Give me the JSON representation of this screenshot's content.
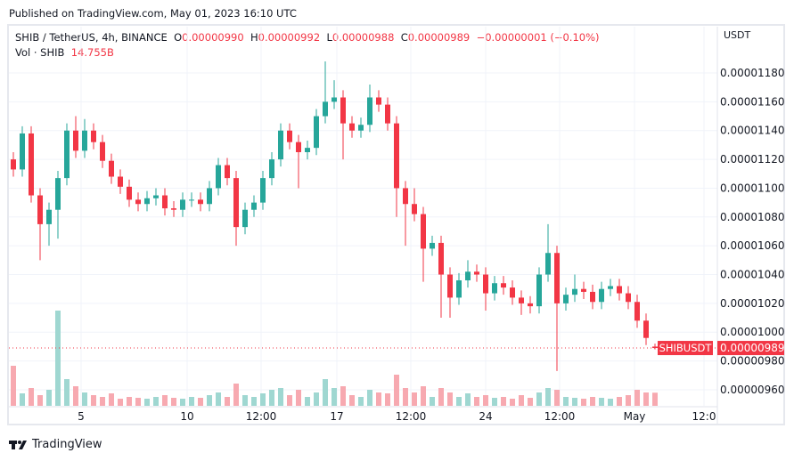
{
  "published": "Published on TradingView.com, May 01, 2023 16:10 UTC",
  "legend": {
    "symbol": "SHIB / TetherUS, 4h, BINANCE",
    "o_label": "O",
    "o": "0.00000990",
    "h_label": "H",
    "h": "0.00000992",
    "l_label": "L",
    "l": "0.00000988",
    "c_label": "C",
    "c": "0.00000989",
    "change": "−0.00000001 (−0.10%)",
    "vol_label": "Vol · SHIB",
    "vol": "14.755B"
  },
  "currency": "USDT",
  "footer": {
    "brand": "TradingView"
  },
  "colors": {
    "up": "#26a69a",
    "down": "#f23645",
    "up_vol": "#9fd7d1",
    "down_vol": "#f7a9b0",
    "grid": "#f0f3fa"
  },
  "chart_data": {
    "type": "candlestick",
    "interval": "4h",
    "ylim": [
      9.5e-06,
      1.185e-05
    ],
    "y_ticks": [
      "0.00001180",
      "0.00001160",
      "0.00001140",
      "0.00001120",
      "0.00001100",
      "0.00001080",
      "0.00001060",
      "0.00001040",
      "0.00001020",
      "0.00001000",
      "0.00000980",
      "0.00000960"
    ],
    "x_ticks": [
      "5",
      "10",
      "12:00",
      "17",
      "12:00",
      "24",
      "12:00",
      "May",
      "12:0"
    ],
    "last_price": {
      "symbol": "SHIBUSDT",
      "value": "0.00000989"
    },
    "ohlc": [
      [
        1.12e-05,
        1.125e-05,
        1.108e-05,
        1.113e-05
      ],
      [
        1.113e-05,
        1.143e-05,
        1.108e-05,
        1.138e-05
      ],
      [
        1.138e-05,
        1.143e-05,
        1.09e-05,
        1.095e-05
      ],
      [
        1.095e-05,
        1.1e-05,
        1.05e-05,
        1.075e-05
      ],
      [
        1.075e-05,
        1.09e-05,
        1.06e-05,
        1.085e-05
      ],
      [
        1.085e-05,
        1.112e-05,
        1.065e-05,
        1.107e-05
      ],
      [
        1.107e-05,
        1.145e-05,
        1.102e-05,
        1.14e-05
      ],
      [
        1.14e-05,
        1.15e-05,
        1.121e-05,
        1.126e-05
      ],
      [
        1.126e-05,
        1.148e-05,
        1.121e-05,
        1.14e-05
      ],
      [
        1.14e-05,
        1.145e-05,
        1.127e-05,
        1.132e-05
      ],
      [
        1.132e-05,
        1.137e-05,
        1.114e-05,
        1.119e-05
      ],
      [
        1.119e-05,
        1.124e-05,
        1.103e-05,
        1.108e-05
      ],
      [
        1.108e-05,
        1.113e-05,
        1.096e-05,
        1.101e-05
      ],
      [
        1.101e-05,
        1.106e-05,
        1.087e-05,
        1.092e-05
      ],
      [
        1.092e-05,
        1.097e-05,
        1.084e-05,
        1.089e-05
      ],
      [
        1.089e-05,
        1.098e-05,
        1.084e-05,
        1.093e-05
      ],
      [
        1.093e-05,
        1.1e-05,
        1.088e-05,
        1.095e-05
      ],
      [
        1.095e-05,
        1.1e-05,
        1.081e-05,
        1.086e-05
      ],
      [
        1.086e-05,
        1.091e-05,
        1.08e-05,
        1.085e-05
      ],
      [
        1.085e-05,
        1.097e-05,
        1.08e-05,
        1.092e-05
      ],
      [
        1.092e-05,
        1.097e-05,
        1.087e-05,
        1.092e-05
      ],
      [
        1.092e-05,
        1.097e-05,
        1.084e-05,
        1.089e-05
      ],
      [
        1.089e-05,
        1.105e-05,
        1.084e-05,
        1.1e-05
      ],
      [
        1.1e-05,
        1.121e-05,
        1.095e-05,
        1.116e-05
      ],
      [
        1.116e-05,
        1.121e-05,
        1.102e-05,
        1.107e-05
      ],
      [
        1.107e-05,
        1.112e-05,
        1.06e-05,
        1.073e-05
      ],
      [
        1.073e-05,
        1.09e-05,
        1.068e-05,
        1.085e-05
      ],
      [
        1.085e-05,
        1.095e-05,
        1.08e-05,
        1.09e-05
      ],
      [
        1.09e-05,
        1.112e-05,
        1.085e-05,
        1.107e-05
      ],
      [
        1.107e-05,
        1.125e-05,
        1.102e-05,
        1.12e-05
      ],
      [
        1.12e-05,
        1.145e-05,
        1.115e-05,
        1.14e-05
      ],
      [
        1.14e-05,
        1.145e-05,
        1.127e-05,
        1.132e-05
      ],
      [
        1.132e-05,
        1.137e-05,
        1.1e-05,
        1.125e-05
      ],
      [
        1.125e-05,
        1.133e-05,
        1.12e-05,
        1.128e-05
      ],
      [
        1.128e-05,
        1.155e-05,
        1.123e-05,
        1.15e-05
      ],
      [
        1.15e-05,
        1.188e-05,
        1.145e-05,
        1.16e-05
      ],
      [
        1.16e-05,
        1.175e-05,
        1.155e-05,
        1.163e-05
      ],
      [
        1.163e-05,
        1.168e-05,
        1.12e-05,
        1.145e-05
      ],
      [
        1.145e-05,
        1.15e-05,
        1.135e-05,
        1.14e-05
      ],
      [
        1.14e-05,
        1.149e-05,
        1.135e-05,
        1.144e-05
      ],
      [
        1.144e-05,
        1.172e-05,
        1.139e-05,
        1.163e-05
      ],
      [
        1.163e-05,
        1.168e-05,
        1.153e-05,
        1.158e-05
      ],
      [
        1.158e-05,
        1.163e-05,
        1.14e-05,
        1.145e-05
      ],
      [
        1.145e-05,
        1.15e-05,
        1.08e-05,
        1.1e-05
      ],
      [
        1.1e-05,
        1.105e-05,
        1.06e-05,
        1.089e-05
      ],
      [
        1.089e-05,
        1.1e-05,
        1.077e-05,
        1.082e-05
      ],
      [
        1.082e-05,
        1.087e-05,
        1.035e-05,
        1.058e-05
      ],
      [
        1.058e-05,
        1.067e-05,
        1.053e-05,
        1.062e-05
      ],
      [
        1.062e-05,
        1.067e-05,
        1.01e-05,
        1.04e-05
      ],
      [
        1.04e-05,
        1.045e-05,
        1.01e-05,
        1.024e-05
      ],
      [
        1.024e-05,
        1.041e-05,
        1.019e-05,
        1.036e-05
      ],
      [
        1.036e-05,
        1.05e-05,
        1.031e-05,
        1.042e-05
      ],
      [
        1.042e-05,
        1.047e-05,
        1.035e-05,
        1.04e-05
      ],
      [
        1.04e-05,
        1.045e-05,
        1.015e-05,
        1.027e-05
      ],
      [
        1.027e-05,
        1.039e-05,
        1.022e-05,
        1.034e-05
      ],
      [
        1.034e-05,
        1.039e-05,
        1.026e-05,
        1.031e-05
      ],
      [
        1.031e-05,
        1.036e-05,
        1.019e-05,
        1.024e-05
      ],
      [
        1.024e-05,
        1.029e-05,
        1.012e-05,
        1.02e-05
      ],
      [
        1.02e-05,
        1.025e-05,
        1.013e-05,
        1.018e-05
      ],
      [
        1.018e-05,
        1.045e-05,
        1.013e-05,
        1.04e-05
      ],
      [
        1.04e-05,
        1.075e-05,
        1.035e-05,
        1.055e-05
      ],
      [
        1.055e-05,
        1.06e-05,
        9.73e-06,
        1.02e-05
      ],
      [
        1.02e-05,
        1.031e-05,
        1.015e-05,
        1.026e-05
      ],
      [
        1.026e-05,
        1.04e-05,
        1.021e-05,
        1.03e-05
      ],
      [
        1.03e-05,
        1.035e-05,
        1.023e-05,
        1.028e-05
      ],
      [
        1.028e-05,
        1.033e-05,
        1.016e-05,
        1.021e-05
      ],
      [
        1.021e-05,
        1.035e-05,
        1.016e-05,
        1.03e-05
      ],
      [
        1.03e-05,
        1.037e-05,
        1.025e-05,
        1.032e-05
      ],
      [
        1.032e-05,
        1.037e-05,
        1.022e-05,
        1.027e-05
      ],
      [
        1.027e-05,
        1.032e-05,
        1.016e-05,
        1.021e-05
      ],
      [
        1.021e-05,
        1.026e-05,
        1.003e-05,
        1.008e-05
      ],
      [
        1.008e-05,
        1.013e-05,
        9.91e-06,
        9.96e-06
      ],
      [
        9.9e-06,
        9.92e-06,
        9.88e-06,
        9.89e-06
      ]
    ],
    "volume_billions": [
      45,
      14,
      20,
      12,
      18,
      107,
      30,
      22,
      15,
      12,
      10,
      14,
      8,
      10,
      9,
      8,
      10,
      12,
      9,
      8,
      10,
      9,
      12,
      15,
      10,
      25,
      12,
      10,
      14,
      18,
      20,
      12,
      18,
      10,
      15,
      30,
      20,
      22,
      12,
      10,
      18,
      15,
      14,
      35,
      20,
      15,
      22,
      10,
      20,
      15,
      10,
      14,
      10,
      12,
      9,
      10,
      8,
      12,
      9,
      15,
      20,
      18,
      10,
      9,
      8,
      10,
      9,
      8,
      10,
      12,
      18,
      15,
      14.755
    ]
  }
}
